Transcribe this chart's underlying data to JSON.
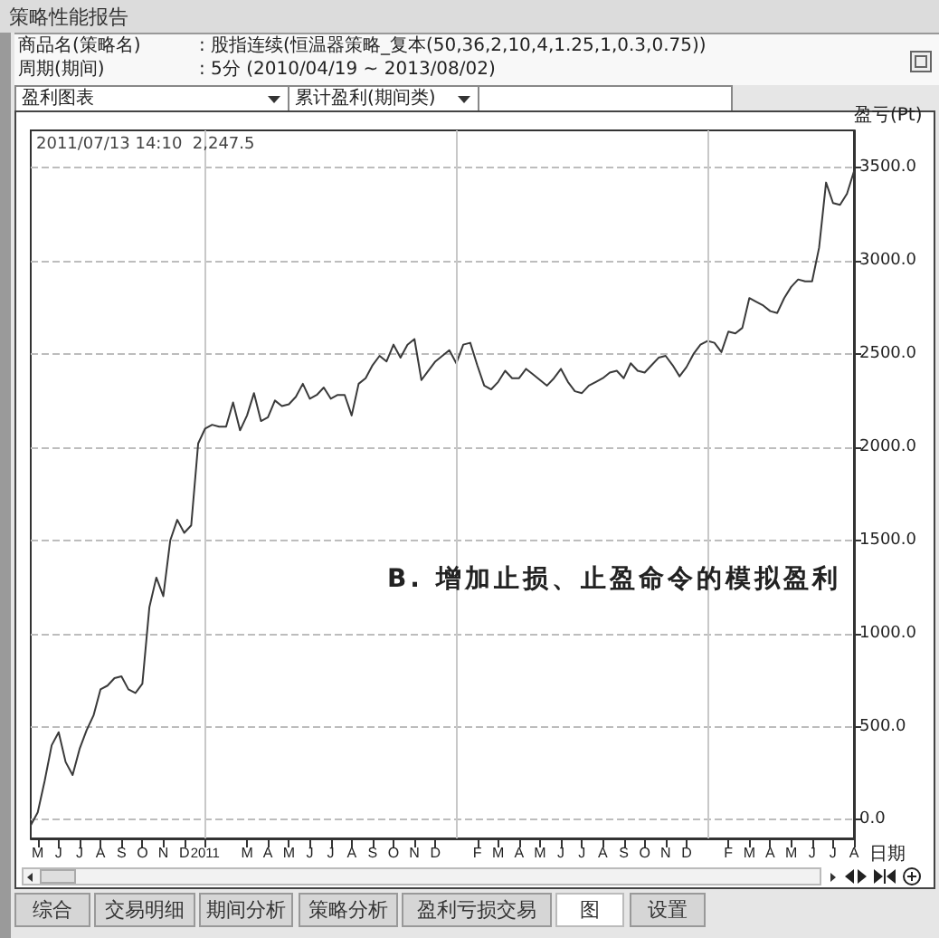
{
  "chart_data": {
    "type": "line",
    "title": "策略性能报告",
    "ylabel": "盈亏(Pt)",
    "xlabel": "日期",
    "annotations": [
      "商品名(策略名)",
      ": 股指连续(恒温器策略_复本(50,36,2,10,4,1.25,1,0.3,0.75))",
      "周期(期间)",
      ": 5分 (2010/04/19 ~ 2013/08/02)",
      "盈利图表",
      "累计盈利(期间类)",
      "2011/07/13 14:10  2,247.5",
      "B. 增加止损、止盈命令的模拟盈利",
      "综合",
      "交易明细",
      "期间分析",
      "策略分析",
      "盈利亏损交易",
      "图",
      "设置"
    ],
    "categories": [
      null,
      "M",
      null,
      null,
      "J",
      null,
      null,
      "J",
      null,
      null,
      "A",
      null,
      null,
      "S",
      null,
      null,
      "O",
      null,
      null,
      "N",
      null,
      null,
      "D",
      null,
      null,
      "2011",
      null,
      null,
      null,
      null,
      null,
      "M",
      null,
      null,
      "A",
      null,
      null,
      "M",
      null,
      null,
      "J",
      null,
      null,
      "J",
      null,
      null,
      "A",
      null,
      null,
      "S",
      null,
      null,
      "O",
      null,
      null,
      "N",
      null,
      null,
      "D",
      null,
      null,
      null,
      null,
      null,
      "F",
      null,
      null,
      "M",
      null,
      null,
      "A",
      null,
      null,
      "M",
      null,
      null,
      "J",
      null,
      null,
      "J",
      null,
      null,
      "A",
      null,
      null,
      "S",
      null,
      null,
      "O",
      null,
      null,
      "N",
      null,
      null,
      "D",
      null,
      null,
      null,
      null,
      null,
      "F",
      null,
      null,
      "M",
      null,
      null,
      "A",
      null,
      null,
      "M",
      null,
      null,
      "J",
      null,
      null,
      "J",
      null,
      null,
      "A"
    ],
    "values": [
      -30,
      40,
      210,
      400,
      470,
      310,
      240,
      380,
      480,
      560,
      700,
      720,
      760,
      770,
      700,
      680,
      730,
      1140,
      1300,
      1200,
      1500,
      1610,
      1540,
      1580,
      2020,
      2100,
      2120,
      2110,
      2110,
      2240,
      2090,
      2170,
      2290,
      2140,
      2160,
      2250,
      2220,
      2230,
      2270,
      2340,
      2260,
      2280,
      2320,
      2260,
      2280,
      2280,
      2170,
      2340,
      2370,
      2440,
      2490,
      2460,
      2550,
      2480,
      2550,
      2580,
      2360,
      2410,
      2460,
      2490,
      2520,
      2450,
      2550,
      2560,
      2440,
      2330,
      2310,
      2350,
      2410,
      2370,
      2370,
      2420,
      2390,
      2360,
      2330,
      2370,
      2420,
      2350,
      2300,
      2290,
      2330,
      2350,
      2370,
      2400,
      2410,
      2370,
      2450,
      2410,
      2400,
      2440,
      2480,
      2490,
      2440,
      2380,
      2430,
      2500,
      2550,
      2570,
      2560,
      2510,
      2620,
      2610,
      2640,
      2800,
      2780,
      2760,
      2730,
      2720,
      2800,
      2860,
      2900,
      2890,
      2890,
      3070,
      3420,
      3310,
      3300,
      3360,
      3480
    ],
    "color": "#3a3a3a",
    "ylim": [
      -100,
      3700
    ],
    "yticks": [
      {
        "value": 0,
        "label": "0.0"
      },
      {
        "value": 500,
        "label": "500.0"
      },
      {
        "value": 1000,
        "label": "1000.0"
      },
      {
        "value": 1500,
        "label": "1500.0"
      },
      {
        "value": 2000,
        "label": "2000.0"
      },
      {
        "value": 2500,
        "label": "2500.0"
      },
      {
        "value": 3000,
        "label": "3000.0"
      },
      {
        "value": 3500,
        "label": "3500.0"
      }
    ],
    "grid": "y",
    "ref_lines": [
      {
        "axis": "x",
        "value": "2011",
        "color": "#c8c8c8"
      }
    ]
  }
}
